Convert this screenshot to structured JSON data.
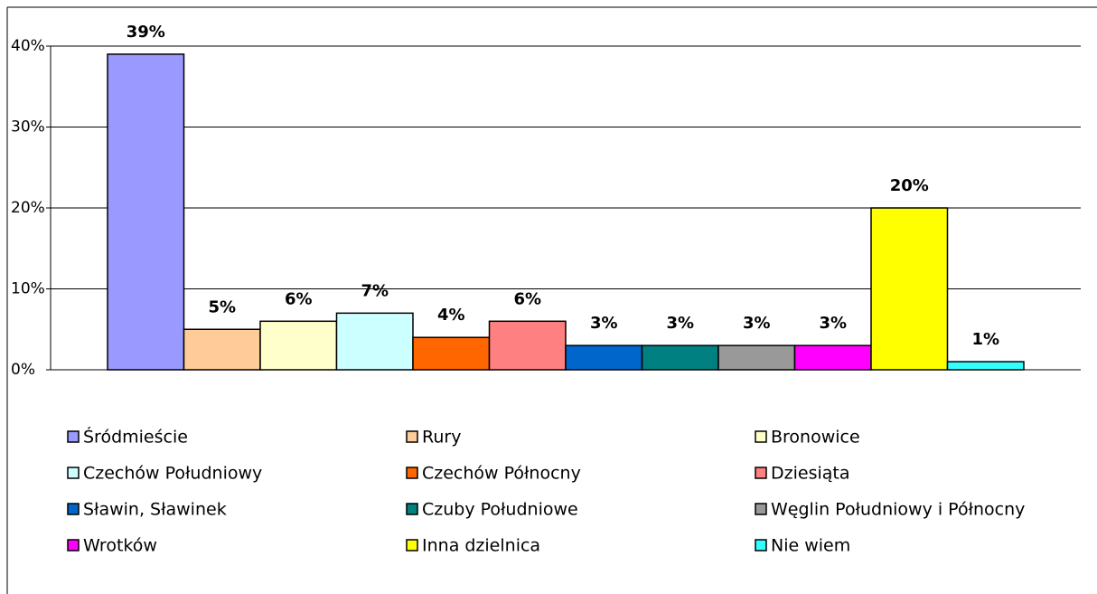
{
  "chart_data": {
    "type": "bar",
    "categories": [
      null
    ],
    "series": [
      {
        "name": "Śródmieście",
        "color": "#9999ff",
        "values": [
          39
        ],
        "value_labels": [
          "39%"
        ]
      },
      {
        "name": "Rury",
        "color": "#ffcc99",
        "values": [
          5
        ],
        "value_labels": [
          "5%"
        ]
      },
      {
        "name": "Bronowice",
        "color": "#ffffcc",
        "values": [
          6
        ],
        "value_labels": [
          "6%"
        ]
      },
      {
        "name": "Czechów Południowy",
        "color": "#ccffff",
        "values": [
          7
        ],
        "value_labels": [
          "7%"
        ]
      },
      {
        "name": "Czechów Północny",
        "color": "#ff6600",
        "values": [
          4
        ],
        "value_labels": [
          "4%"
        ]
      },
      {
        "name": "Dziesiąta",
        "color": "#ff8080",
        "values": [
          6
        ],
        "value_labels": [
          "6%"
        ]
      },
      {
        "name": "Sławin, Sławinek",
        "color": "#0066cc",
        "values": [
          3
        ],
        "value_labels": [
          "3%"
        ]
      },
      {
        "name": "Czuby Południowe",
        "color": "#008080",
        "values": [
          3
        ],
        "value_labels": [
          "3%"
        ]
      },
      {
        "name": "Węglin Południowy i Północny",
        "color": "#999999",
        "values": [
          3
        ],
        "value_labels": [
          "3%"
        ]
      },
      {
        "name": "Wrotków",
        "color": "#ff00ff",
        "values": [
          3
        ],
        "value_labels": [
          "3%"
        ]
      },
      {
        "name": "Inna dzielnica",
        "color": "#ffff00",
        "values": [
          20
        ],
        "value_labels": [
          "20%"
        ]
      },
      {
        "name": "Nie wiem",
        "color": "#33ffff",
        "values": [
          1
        ],
        "value_labels": [
          "1%"
        ]
      }
    ],
    "ylim": [
      0,
      40
    ],
    "yticks": [
      {
        "value": 0,
        "label": "0%"
      },
      {
        "value": 10,
        "label": "10%"
      },
      {
        "value": 20,
        "label": "20%"
      },
      {
        "value": 30,
        "label": "30%"
      },
      {
        "value": 40,
        "label": "40%"
      }
    ],
    "grid": true,
    "legend": "bottom"
  }
}
